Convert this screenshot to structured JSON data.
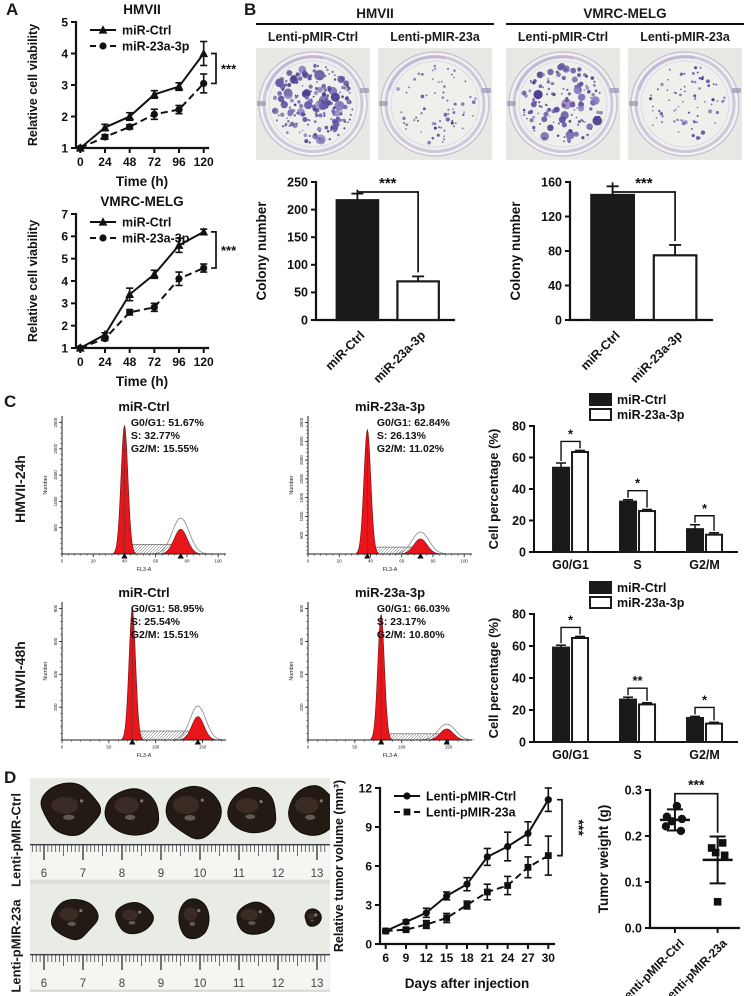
{
  "panels": {
    "A": {
      "label": "A"
    },
    "B": {
      "label": "B",
      "group_titles": [
        "HMVII",
        "VMRC-MELG"
      ],
      "column_labels": [
        "Lenti-pMIR-Ctrl",
        "Lenti-pMIR-23a",
        "Lenti-pMIR-Ctrl",
        "Lenti-pMIR-23a"
      ],
      "wells": [
        {
          "colonies": 217,
          "dense": true
        },
        {
          "colonies": 70,
          "dense": false
        },
        {
          "colonies": 145,
          "dense": true
        },
        {
          "colonies": 75,
          "dense": false
        }
      ]
    },
    "C": {
      "label": "C",
      "row_labels": [
        "HMVII-24h",
        "HMVII-48h"
      ]
    },
    "D": {
      "label": "D",
      "photo_row_labels": [
        "Lenti-pMIR-Ctrl",
        "Lenti-pMIR-23a"
      ],
      "ruler_numbers": [
        "6",
        "7",
        "8",
        "9",
        "10",
        "11",
        "12",
        "13"
      ],
      "tumor_sizes_top": [
        [
          32,
          26
        ],
        [
          29,
          26
        ],
        [
          31,
          28
        ],
        [
          27,
          24
        ],
        [
          28,
          26
        ]
      ],
      "tumor_sizes_bottom": [
        [
          23,
          21
        ],
        [
          19,
          17
        ],
        [
          16,
          21
        ],
        [
          21,
          18
        ],
        [
          9,
          9
        ]
      ]
    }
  },
  "colors": {
    "histogram_fill": "#e8151b",
    "colony_stain": "#5d4d99",
    "bar_black": "#1a1a1a"
  },
  "chart_data": [
    {
      "id": "a-hmvii",
      "type": "line",
      "title": "HMVII",
      "xlabel": "Time (h)",
      "ylabel": "Relative cell viability",
      "x": [
        0,
        24,
        48,
        72,
        96,
        120
      ],
      "ylim": [
        1,
        5
      ],
      "yticks": [
        1,
        2,
        3,
        4,
        5
      ],
      "series": [
        {
          "name": "miR-Ctrl",
          "marker": "tri",
          "dash": false,
          "values": [
            1,
            1.65,
            2.0,
            2.7,
            2.95,
            4.0
          ],
          "err": [
            0.04,
            0.1,
            0.12,
            0.12,
            0.12,
            0.38
          ]
        },
        {
          "name": "miR-23a-3p",
          "marker": "dot",
          "dash": true,
          "values": [
            1,
            1.35,
            1.67,
            2.07,
            2.22,
            3.05
          ],
          "err": [
            0.04,
            0.07,
            0.07,
            0.16,
            0.13,
            0.3
          ]
        }
      ],
      "sig": "***"
    },
    {
      "id": "a-vmrc",
      "type": "line",
      "title": "VMRC-MELG",
      "xlabel": "Time (h)",
      "ylabel": "Relative cell viability",
      "x": [
        0,
        24,
        48,
        72,
        96,
        120
      ],
      "ylim": [
        1,
        7
      ],
      "yticks": [
        1,
        2,
        3,
        4,
        5,
        6,
        7
      ],
      "series": [
        {
          "name": "miR-Ctrl",
          "marker": "tri",
          "dash": false,
          "values": [
            1,
            1.6,
            3.4,
            4.3,
            5.6,
            6.2
          ],
          "err": [
            0.05,
            0.08,
            0.28,
            0.18,
            0.32,
            0.12
          ]
        },
        {
          "name": "miR-23a-3p",
          "marker": "dot",
          "dash": true,
          "values": [
            1,
            1.42,
            2.6,
            2.82,
            4.1,
            4.58
          ],
          "err": [
            0.05,
            0.08,
            0.12,
            0.18,
            0.3,
            0.18
          ]
        }
      ],
      "sig": "***"
    },
    {
      "id": "b-colony-hmvii",
      "type": "bar",
      "ylabel": "Colony number",
      "ylim": [
        0,
        250
      ],
      "yticks": [
        0,
        50,
        100,
        150,
        200,
        250
      ],
      "categories": [
        "miR-Ctrl",
        "miR-23a-3p"
      ],
      "values": [
        217,
        70
      ],
      "err": [
        12,
        9
      ],
      "fills": [
        "black",
        "white"
      ],
      "sig": "***"
    },
    {
      "id": "b-colony-vmrc",
      "type": "bar",
      "ylabel": "Colony number",
      "ylim": [
        0,
        160
      ],
      "yticks": [
        0,
        40,
        80,
        120,
        160
      ],
      "categories": [
        "miR-Ctrl",
        "miR-23a-3p"
      ],
      "values": [
        145,
        75
      ],
      "err": [
        10,
        12
      ],
      "fills": [
        "black",
        "white"
      ],
      "sig": "***"
    },
    {
      "id": "c-flow-24-ctrl",
      "type": "flow",
      "title": "miR-Ctrl",
      "xlabel": "FL3-A",
      "ylabel": "Number",
      "stats": [
        "G0/G1: 51.67%",
        "S: 32.77%",
        "G2/M: 15.55%"
      ],
      "xmax": 105,
      "xticks": [
        0,
        20,
        40,
        60,
        80,
        100
      ],
      "yticks": [
        500,
        1000,
        1500,
        2000,
        2500
      ],
      "peaks": [
        {
          "x": 40,
          "h": 0.93,
          "sd": 2.2
        },
        {
          "x": 76,
          "h": 0.18,
          "sd": 4.2
        }
      ],
      "hatch": {
        "x1": 43,
        "x2": 71,
        "h": 0.07
      },
      "markers": [
        40,
        76
      ]
    },
    {
      "id": "c-flow-24-23a",
      "type": "flow",
      "title": "miR-23a-3p",
      "xlabel": "FL3-A",
      "ylabel": "Number",
      "stats": [
        "G0/G1: 62.84%",
        "S: 26.13%",
        "G2/M: 11.02%"
      ],
      "xmax": 105,
      "xticks": [
        0,
        20,
        40,
        60,
        80,
        100
      ],
      "yticks": [
        500,
        1000,
        1500,
        2000,
        2500,
        3000,
        3500
      ],
      "peaks": [
        {
          "x": 38,
          "h": 0.9,
          "sd": 2.2
        },
        {
          "x": 72,
          "h": 0.11,
          "sd": 4.2
        }
      ],
      "hatch": {
        "x1": 41,
        "x2": 68,
        "h": 0.05
      },
      "markers": [
        38,
        72
      ]
    },
    {
      "id": "c-flow-48-ctrl",
      "type": "flow",
      "title": "miR-Ctrl",
      "xlabel": "FL3-A",
      "ylabel": "Number",
      "stats": [
        "G0/G1: 58.95%",
        "S: 25.54%",
        "G2/M: 15.51%"
      ],
      "xmax": 175,
      "xticks": [
        0,
        50,
        100,
        150
      ],
      "yticks": [
        200,
        400,
        600,
        800
      ],
      "peaks": [
        {
          "x": 75,
          "h": 0.95,
          "sd": 3.5
        },
        {
          "x": 145,
          "h": 0.17,
          "sd": 6.5
        }
      ],
      "hatch": {
        "x1": 81,
        "x2": 136,
        "h": 0.065
      },
      "markers": [
        75,
        145
      ]
    },
    {
      "id": "c-flow-48-23a",
      "type": "flow",
      "title": "miR-23a-3p",
      "xlabel": "FL3-A",
      "ylabel": "Number",
      "stats": [
        "G0/G1: 66.03%",
        "S: 23.17%",
        "G2/M: 10.80%"
      ],
      "xmax": 175,
      "xticks": [
        0,
        50,
        100,
        150
      ],
      "yticks": [
        200,
        400,
        600,
        800
      ],
      "peaks": [
        {
          "x": 78,
          "h": 0.91,
          "sd": 3.5
        },
        {
          "x": 148,
          "h": 0.08,
          "sd": 7
        }
      ],
      "hatch": {
        "x1": 84,
        "x2": 139,
        "h": 0.045
      },
      "markers": [
        78,
        148
      ]
    },
    {
      "id": "c-bars-24h",
      "type": "groupbar",
      "ylabel": "Cell percentage (%)",
      "ylim": [
        0,
        80
      ],
      "yticks": [
        0,
        20,
        40,
        60,
        80
      ],
      "categories": [
        "G0/G1",
        "S",
        "G2/M"
      ],
      "series": [
        {
          "name": "miR-Ctrl",
          "fill": "black",
          "values": [
            53.5,
            32,
            14.5
          ],
          "err": [
            3,
            1.2,
            2.8
          ]
        },
        {
          "name": "miR-23a-3p",
          "fill": "white",
          "values": [
            63.5,
            26,
            11
          ],
          "err": [
            1,
            1,
            1.2
          ]
        }
      ],
      "sig": [
        "*",
        "*",
        "*"
      ]
    },
    {
      "id": "c-bars-48h",
      "type": "groupbar",
      "ylabel": "Cell percentage (%)",
      "ylim": [
        0,
        80
      ],
      "yticks": [
        0,
        20,
        40,
        60,
        80
      ],
      "categories": [
        "G0/G1",
        "S",
        "G2/M"
      ],
      "series": [
        {
          "name": "miR-Ctrl",
          "fill": "black",
          "values": [
            59,
            26.5,
            15
          ],
          "err": [
            1.5,
            1.5,
            1
          ]
        },
        {
          "name": "miR-23a-3p",
          "fill": "white",
          "values": [
            65,
            23.5,
            11.5
          ],
          "err": [
            1,
            1,
            0.8
          ]
        }
      ],
      "sig": [
        "*",
        "**",
        "*"
      ]
    },
    {
      "id": "d-volume",
      "type": "line",
      "title": "",
      "xlabel": "Days after injection",
      "ylabel": "Relative tumor volume (mm³)",
      "x": [
        6,
        9,
        12,
        15,
        18,
        21,
        24,
        27,
        30
      ],
      "ylim": [
        0,
        12
      ],
      "yticks": [
        0,
        3,
        6,
        9,
        12
      ],
      "series": [
        {
          "name": "Lenti-pMIR-Ctrl",
          "marker": "dot",
          "dash": false,
          "values": [
            1,
            1.7,
            2.4,
            3.7,
            4.6,
            6.7,
            7.5,
            8.5,
            11.1
          ],
          "err": [
            0.1,
            0.15,
            0.35,
            0.3,
            0.5,
            0.65,
            1.1,
            0.9,
            0.9
          ]
        },
        {
          "name": "Lenti-pMIR-23a",
          "marker": "sq",
          "dash": true,
          "values": [
            1,
            1.1,
            1.5,
            2.0,
            3.0,
            4.0,
            4.5,
            5.9,
            6.8
          ],
          "err": [
            0.08,
            0.12,
            0.3,
            0.35,
            0.3,
            0.6,
            0.7,
            0.8,
            1.5
          ]
        }
      ],
      "sig": "***",
      "sig_rotate": true
    },
    {
      "id": "d-weight",
      "type": "scatter",
      "ylabel": "Tumor weight (g)",
      "ylim": [
        0,
        0.3
      ],
      "yticks": [
        0,
        0.1,
        0.2,
        0.3
      ],
      "groups": [
        {
          "name": "Lenti-pMIR-Ctrl",
          "marker": "dot",
          "points": [
            0.265,
            0.242,
            0.237,
            0.232,
            0.221,
            0.211
          ],
          "mean": 0.235,
          "sd_low": 0.212,
          "sd_high": 0.258
        },
        {
          "name": "Lenti-pMIR-23a",
          "marker": "sq",
          "points": [
            0.185,
            0.174,
            0.164,
            0.158,
            0.057
          ],
          "mean": 0.148,
          "sd_low": 0.097,
          "sd_high": 0.199
        }
      ],
      "sig": "***"
    }
  ]
}
